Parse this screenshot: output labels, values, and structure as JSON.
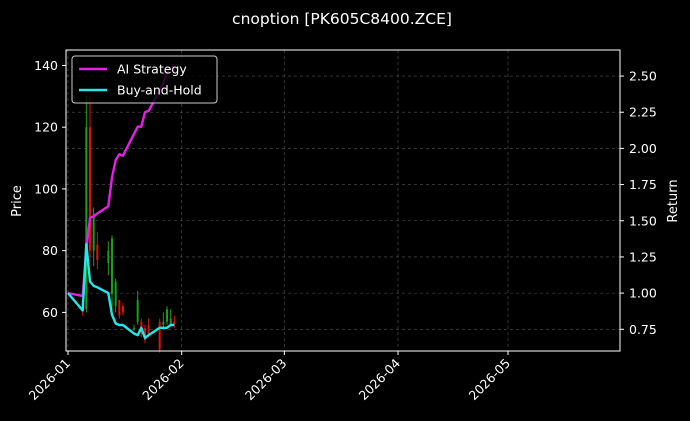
{
  "chart_data": {
    "type": "line",
    "title": "cnoption [PK605C8400.ZCE]",
    "xlabel": "",
    "ylabel": "Price",
    "ylabel_right": "Return",
    "x_range": [
      "2026-01-01",
      "2026-05-31"
    ],
    "ylim": [
      47.5,
      145
    ],
    "ylim_right": [
      0.6,
      2.68
    ],
    "x_ticks": [
      "2026-01",
      "2026-02",
      "2026-03",
      "2026-04",
      "2026-05"
    ],
    "y_ticks": [
      60,
      80,
      100,
      120,
      140
    ],
    "y_ticks_right": [
      0.75,
      1.0,
      1.25,
      1.5,
      1.75,
      2.0,
      2.25,
      2.5
    ],
    "grid": true,
    "legend_position": "top-left",
    "colors": {
      "background": "#000000",
      "grid": "#555555",
      "ai_strategy": "#e61ee6",
      "buy_and_hold": "#22e8e8",
      "candle_up": "#1a9e1a",
      "candle_down": "#e01010"
    },
    "candles": [
      {
        "date": "2026-01-05",
        "open": 64,
        "high": 66,
        "low": 59,
        "close": 61
      },
      {
        "date": "2026-01-06",
        "open": 61,
        "high": 130,
        "low": 60,
        "close": 120
      },
      {
        "date": "2026-01-07",
        "open": 120,
        "high": 130,
        "low": 78,
        "close": 80
      },
      {
        "date": "2026-01-08",
        "open": 80,
        "high": 94,
        "low": 75,
        "close": 92
      },
      {
        "date": "2026-01-09",
        "open": 82,
        "high": 86,
        "low": 74,
        "close": 77
      },
      {
        "date": "2026-01-12",
        "open": 76,
        "high": 83,
        "low": 72,
        "close": 80
      },
      {
        "date": "2026-01-13",
        "open": 66,
        "high": 85,
        "low": 60,
        "close": 84
      },
      {
        "date": "2026-01-14",
        "open": 62,
        "high": 71,
        "low": 60,
        "close": 70
      },
      {
        "date": "2026-01-15",
        "open": 64,
        "high": 64,
        "low": 58,
        "close": 59
      },
      {
        "date": "2026-01-16",
        "open": 62,
        "high": 63,
        "low": 59,
        "close": 60
      },
      {
        "date": "2026-01-19",
        "open": 55,
        "high": 56,
        "low": 54,
        "close": 55
      },
      {
        "date": "2026-01-20",
        "open": 57,
        "high": 67,
        "low": 56,
        "close": 64
      },
      {
        "date": "2026-01-21",
        "open": 57,
        "high": 58,
        "low": 52,
        "close": 53
      },
      {
        "date": "2026-01-22",
        "open": 55,
        "high": 56,
        "low": 50,
        "close": 51
      },
      {
        "date": "2026-01-23",
        "open": 56,
        "high": 58,
        "low": 52,
        "close": 53
      },
      {
        "date": "2026-01-26",
        "open": 57,
        "high": 58,
        "low": 47,
        "close": 48
      },
      {
        "date": "2026-01-27",
        "open": 56,
        "high": 60,
        "low": 55,
        "close": 57
      },
      {
        "date": "2026-01-28",
        "open": 57,
        "high": 62,
        "low": 56,
        "close": 61
      },
      {
        "date": "2026-01-29",
        "open": 56,
        "high": 61,
        "low": 56,
        "close": 58
      },
      {
        "date": "2026-01-30",
        "open": 57,
        "high": 59,
        "low": 55,
        "close": 56
      }
    ],
    "series": [
      {
        "name": "AI Strategy",
        "axis": "right",
        "x": [
          "2026-01-01",
          "2026-01-05",
          "2026-01-06",
          "2026-01-07",
          "2026-01-08",
          "2026-01-09",
          "2026-01-12",
          "2026-01-13",
          "2026-01-14",
          "2026-01-15",
          "2026-01-16",
          "2026-01-19",
          "2026-01-20",
          "2026-01-21",
          "2026-01-22",
          "2026-01-23",
          "2026-01-26",
          "2026-01-27",
          "2026-01-28",
          "2026-01-29",
          "2026-01-30"
        ],
        "values": [
          1.0,
          0.98,
          1.3,
          1.52,
          1.53,
          1.55,
          1.6,
          1.8,
          1.92,
          1.96,
          1.95,
          2.1,
          2.15,
          2.15,
          2.25,
          2.26,
          2.4,
          2.45,
          2.52,
          2.55,
          2.58
        ]
      },
      {
        "name": "Buy-and-Hold",
        "axis": "right",
        "x": [
          "2026-01-01",
          "2026-01-05",
          "2026-01-06",
          "2026-01-07",
          "2026-01-08",
          "2026-01-09",
          "2026-01-12",
          "2026-01-13",
          "2026-01-14",
          "2026-01-15",
          "2026-01-16",
          "2026-01-19",
          "2026-01-20",
          "2026-01-21",
          "2026-01-22",
          "2026-01-23",
          "2026-01-26",
          "2026-01-27",
          "2026-01-28",
          "2026-01-29",
          "2026-01-30"
        ],
        "values": [
          1.0,
          0.88,
          1.34,
          1.08,
          1.05,
          1.04,
          1.0,
          0.85,
          0.79,
          0.78,
          0.78,
          0.72,
          0.71,
          0.76,
          0.69,
          0.71,
          0.76,
          0.76,
          0.76,
          0.78,
          0.78
        ]
      }
    ]
  }
}
